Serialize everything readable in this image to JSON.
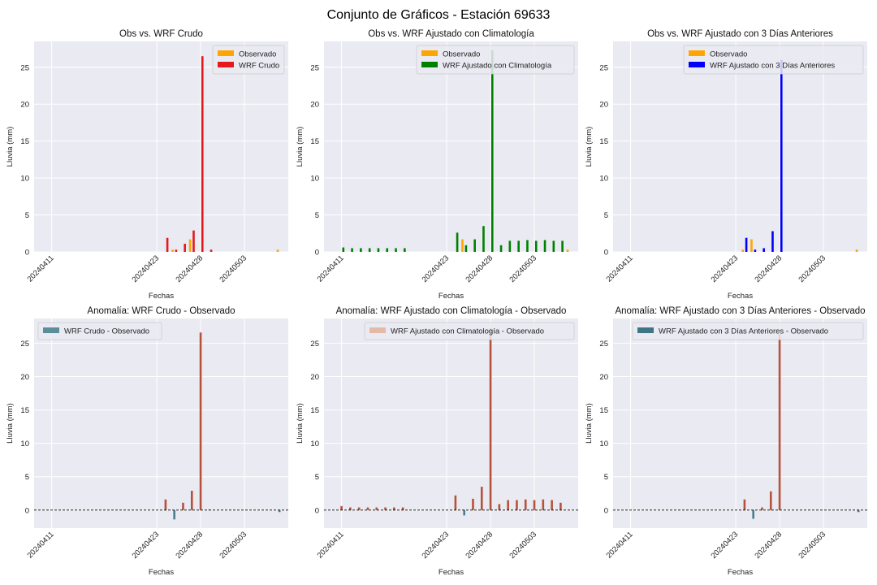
{
  "figure": {
    "suptitle": "Conjunto de Gráficos - Estación 69633"
  },
  "colors": {
    "background": "#eaeaf2",
    "grid": "#ffffff",
    "observado": "#ffa500",
    "wrf_crudo": "#e41a1c",
    "wrf_clima": "#008000",
    "wrf_3dias": "#0000ff",
    "anomaly_positive": "#b5533a",
    "anomaly_negative": "#4a7f8f",
    "legend_teal": "#5b8e9a",
    "legend_peach": "#e4b9a8",
    "legend_dark_teal": "#3f7584"
  },
  "chart_data": [
    {
      "type": "bar",
      "title": "Obs vs. WRF Crudo",
      "xlabel": "Fechas",
      "ylabel": "Lluvia (mm)",
      "ylim": [
        0,
        28.5
      ],
      "yticks": [
        0,
        5,
        10,
        15,
        20,
        25
      ],
      "xticks": [
        "20240411",
        "20240423",
        "20240428",
        "20240503"
      ],
      "legend_position": "upper-right",
      "series": [
        {
          "name": "Observado",
          "color_key": "observado",
          "x": [
            "20240425",
            "20240427",
            "20240507"
          ],
          "values": [
            0.3,
            1.7,
            0.3
          ]
        },
        {
          "name": "WRF Crudo",
          "color_key": "wrf_crudo",
          "x": [
            "20240424",
            "20240425",
            "20240426",
            "20240427",
            "20240428",
            "20240429"
          ],
          "values": [
            1.9,
            0.3,
            1.1,
            2.9,
            26.5,
            0.3
          ]
        }
      ]
    },
    {
      "type": "bar",
      "title": "Obs vs. WRF Ajustado con Climatología",
      "xlabel": "Fechas",
      "ylabel": "Lluvia (mm)",
      "ylim": [
        0,
        28.5
      ],
      "yticks": [
        0,
        5,
        10,
        15,
        20,
        25
      ],
      "xticks": [
        "20240411",
        "20240423",
        "20240428",
        "20240503"
      ],
      "legend_position": "upper-right",
      "series": [
        {
          "name": "Observado",
          "color_key": "observado",
          "x": [
            "20240425",
            "20240507"
          ],
          "values": [
            1.7,
            0.3
          ]
        },
        {
          "name": "WRF Ajustado con Climatología",
          "color_key": "wrf_clima",
          "x": [
            "20240411",
            "20240412",
            "20240413",
            "20240414",
            "20240415",
            "20240416",
            "20240417",
            "20240418",
            "20240424",
            "20240425",
            "20240426",
            "20240427",
            "20240428",
            "20240429",
            "20240430",
            "20240501",
            "20240502",
            "20240503",
            "20240504",
            "20240505",
            "20240506"
          ],
          "values": [
            0.6,
            0.5,
            0.5,
            0.5,
            0.5,
            0.5,
            0.5,
            0.5,
            2.6,
            0.9,
            1.7,
            3.5,
            27.3,
            0.9,
            1.5,
            1.5,
            1.6,
            1.5,
            1.6,
            1.5,
            1.5
          ]
        }
      ]
    },
    {
      "type": "bar",
      "title": "Obs vs. WRF Ajustado con 3 Días Anteriores",
      "xlabel": "Fechas",
      "ylabel": "Lluvia (mm)",
      "ylim": [
        0,
        28.5
      ],
      "yticks": [
        0,
        5,
        10,
        15,
        20,
        25
      ],
      "xticks": [
        "20240411",
        "20240423",
        "20240428",
        "20240503"
      ],
      "legend_position": "upper-right",
      "series": [
        {
          "name": "Observado",
          "color_key": "observado",
          "x": [
            "20240424",
            "20240425",
            "20240507"
          ],
          "values": [
            0.3,
            1.7,
            0.3
          ]
        },
        {
          "name": "WRF Ajustado con 3 Días Anteriores",
          "color_key": "wrf_3dias",
          "x": [
            "20240424",
            "20240425",
            "20240426",
            "20240427",
            "20240428"
          ],
          "values": [
            1.9,
            0.3,
            0.5,
            2.8,
            26.0
          ]
        }
      ]
    },
    {
      "type": "bar",
      "title": "Anomalía: WRF Crudo - Observado",
      "xlabel": "Fechas",
      "ylabel": "Lluvia (mm)",
      "ylim": [
        -2.7,
        28.7
      ],
      "yticks": [
        0,
        5,
        10,
        15,
        20,
        25
      ],
      "xticks": [
        "20240411",
        "20240423",
        "20240428",
        "20240503"
      ],
      "zero_line": true,
      "legend_position": "upper-left",
      "legend_label": "WRF Crudo - Observado",
      "legend_color_key": "legend_teal",
      "x": [
        "20240424",
        "20240425",
        "20240426",
        "20240427",
        "20240428",
        "20240429",
        "20240507"
      ],
      "values": [
        1.6,
        -1.4,
        1.1,
        2.9,
        26.6,
        0.1,
        -0.3
      ]
    },
    {
      "type": "bar",
      "title": "Anomalía: WRF Ajustado con Climatología - Observado",
      "xlabel": "Fechas",
      "ylabel": "Lluvia (mm)",
      "ylim": [
        -2.7,
        28.7
      ],
      "yticks": [
        0,
        5,
        10,
        15,
        20,
        25
      ],
      "xticks": [
        "20240411",
        "20240423",
        "20240428",
        "20240503"
      ],
      "zero_line": true,
      "legend_position": "upper-right",
      "legend_label": "WRF Ajustado con Climatología - Observado",
      "legend_color_key": "legend_peach",
      "x": [
        "20240411",
        "20240412",
        "20240413",
        "20240414",
        "20240415",
        "20240416",
        "20240417",
        "20240418",
        "20240424",
        "20240425",
        "20240426",
        "20240427",
        "20240428",
        "20240429",
        "20240430",
        "20240501",
        "20240502",
        "20240503",
        "20240504",
        "20240505",
        "20240506"
      ],
      "values": [
        0.6,
        0.4,
        0.4,
        0.4,
        0.4,
        0.4,
        0.4,
        0.4,
        2.2,
        -0.8,
        1.7,
        3.5,
        27.2,
        0.9,
        1.5,
        1.5,
        1.6,
        1.5,
        1.6,
        1.5,
        1.1
      ]
    },
    {
      "type": "bar",
      "title": "Anomalía: WRF Ajustado con 3 Días Anteriores - Observado",
      "xlabel": "Fechas",
      "ylabel": "Lluvia (mm)",
      "ylim": [
        -2.7,
        28.7
      ],
      "yticks": [
        0,
        5,
        10,
        15,
        20,
        25
      ],
      "xticks": [
        "20240411",
        "20240423",
        "20240428",
        "20240503"
      ],
      "zero_line": true,
      "legend_position": "upper-right",
      "legend_label": "WRF Ajustado con 3 Días Anteriores - Observado",
      "legend_color_key": "legend_dark_teal",
      "x": [
        "20240424",
        "20240425",
        "20240426",
        "20240427",
        "20240428",
        "20240507"
      ],
      "values": [
        1.6,
        -1.3,
        0.4,
        2.8,
        26.4,
        -0.3
      ]
    }
  ]
}
